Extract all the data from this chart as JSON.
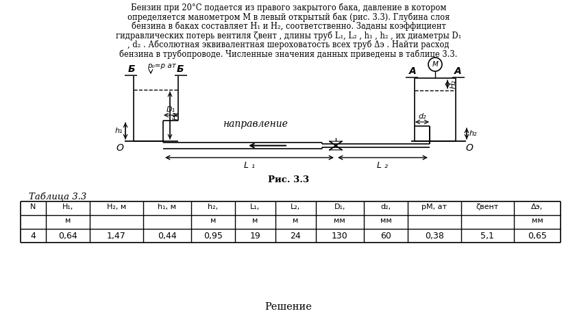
{
  "fig_caption": "Рис. 3.3",
  "table_title": "Таблица 3.3",
  "headers1": [
    "N",
    "H₁,",
    "H₂, м",
    "h₁, м",
    "h₂,",
    "L₁,",
    "L₂,",
    "D₁,",
    "d₂,",
    "pМ, ат",
    "ζвент",
    "Δэ,"
  ],
  "headers2": [
    "",
    "м",
    "",
    "",
    "м",
    "м",
    "м",
    "мм",
    "мм",
    "",
    "",
    "мм"
  ],
  "table_data": [
    "4",
    "0,64",
    "1,47",
    "0,44",
    "0,95",
    "19",
    "24",
    "130",
    "60",
    "0,38",
    "5,1",
    "0,65"
  ],
  "solution_text": "Решение",
  "background_color": "#ffffff",
  "text_color": "#000000"
}
